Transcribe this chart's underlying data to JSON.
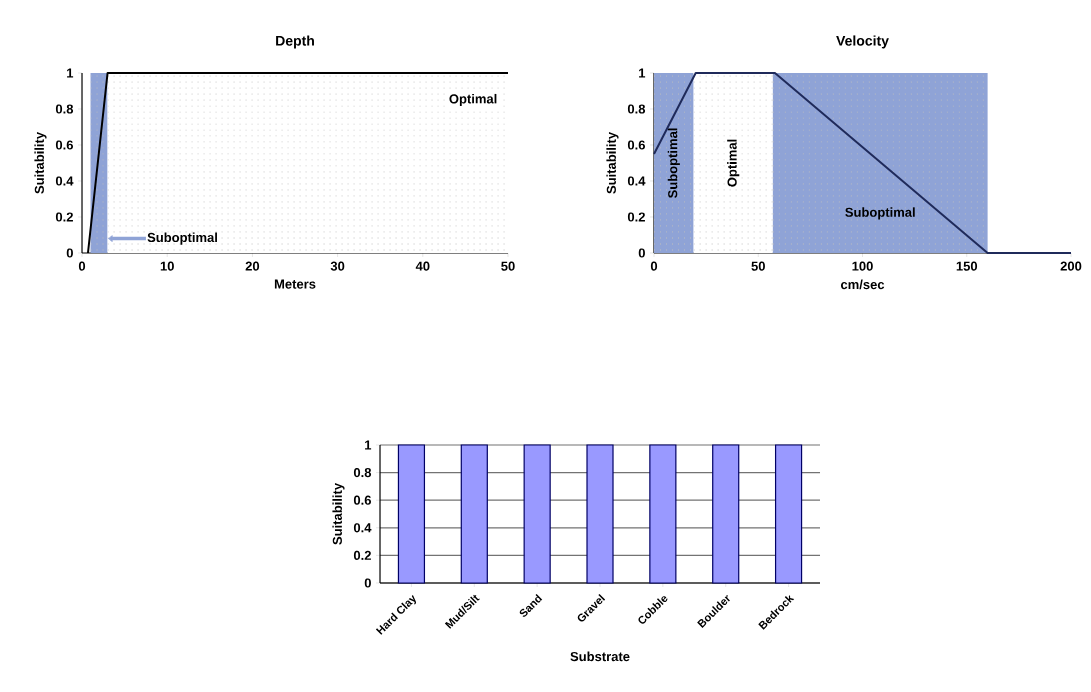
{
  "chart_data": [
    {
      "type": "line",
      "title": "Depth",
      "xlabel": "Meters",
      "ylabel": "Suitability",
      "x": [
        0.7,
        3,
        50
      ],
      "values": [
        0,
        1,
        1
      ],
      "color": "#000000",
      "xlim": [
        0,
        50
      ],
      "ylim": [
        0,
        1
      ],
      "xticks": [
        0,
        10,
        20,
        30,
        40,
        50
      ],
      "yticks": [
        0,
        0.2,
        0.4,
        0.6,
        0.8,
        1
      ],
      "bands": [
        {
          "axis": "x",
          "from": 1,
          "to": 3,
          "label": "Suboptimal",
          "color": "#8fa3d6"
        },
        {
          "axis": "x",
          "from": 3,
          "to": 50,
          "label": "Optimal",
          "color": "#ffffff"
        }
      ]
    },
    {
      "type": "line",
      "title": "Velocity",
      "xlabel": "cm/sec",
      "ylabel": "Suitability",
      "x": [
        0,
        20,
        58,
        160,
        200
      ],
      "values": [
        0.55,
        1,
        1,
        0,
        0
      ],
      "color": "#1f2a5a",
      "xlim": [
        0,
        200
      ],
      "ylim": [
        0,
        1
      ],
      "xticks": [
        0,
        50,
        100,
        150,
        200
      ],
      "yticks": [
        0,
        0.2,
        0.4,
        0.6,
        0.8,
        1
      ],
      "bands": [
        {
          "axis": "x",
          "from": 0,
          "to": 19,
          "label": "Suboptimal",
          "color": "#8fa3d6"
        },
        {
          "axis": "x",
          "from": 19,
          "to": 57,
          "label": "Optimal",
          "color": "#ffffff"
        },
        {
          "axis": "x",
          "from": 57,
          "to": 160,
          "label": "Suboptimal",
          "color": "#8fa3d6"
        }
      ]
    },
    {
      "type": "bar",
      "xlabel": "Substrate",
      "ylabel": "Suitability",
      "categories": [
        "Hard Clay",
        "Mud/Silt",
        "Sand",
        "Gravel",
        "Cobble",
        "Boulder",
        "Bedrock"
      ],
      "values": [
        1,
        1,
        1,
        1,
        1,
        1,
        1
      ],
      "color": "#9999ff",
      "ylim": [
        0,
        1
      ],
      "yticks": [
        0,
        0.2,
        0.4,
        0.6,
        0.8,
        1
      ],
      "grid": "y"
    }
  ]
}
